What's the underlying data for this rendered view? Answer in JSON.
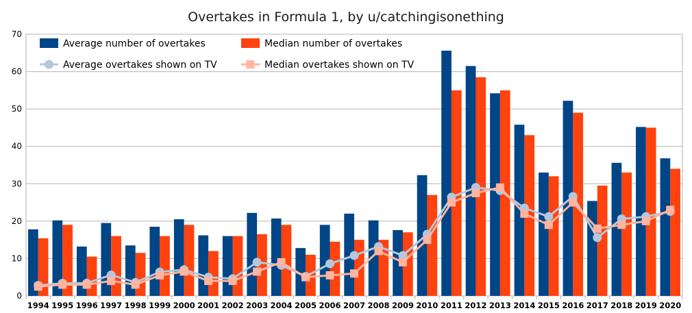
{
  "chart_data": {
    "type": "bar",
    "title": "Overtakes in Formula 1, by u/catchingisonething",
    "xlabel": "",
    "ylabel": "",
    "ylim": [
      0,
      70
    ],
    "yticks": [
      0,
      10,
      20,
      30,
      40,
      50,
      60,
      70
    ],
    "grid": true,
    "legend_position": "top-left",
    "categories": [
      "1994",
      "1995",
      "1996",
      "1997",
      "1998",
      "1999",
      "2000",
      "2001",
      "2002",
      "2003",
      "2004",
      "2005",
      "2006",
      "2007",
      "2008",
      "2009",
      "2010",
      "2011",
      "2012",
      "2013",
      "2014",
      "2015",
      "2016",
      "2017",
      "2018",
      "2019",
      "2020"
    ],
    "series": [
      {
        "name": "Average number of overtakes",
        "kind": "bar",
        "color": "#004586",
        "values": [
          17.8,
          20.2,
          13.2,
          19.5,
          13.5,
          18.5,
          20.5,
          16.2,
          16,
          22.2,
          20.7,
          12.8,
          19,
          22,
          20.2,
          17.6,
          32.3,
          65.6,
          61.5,
          54.2,
          45.8,
          33,
          52.2,
          25.4,
          35.6,
          45.2,
          36.8
        ]
      },
      {
        "name": "Median number of overtakes",
        "kind": "bar",
        "color": "#ff420e",
        "values": [
          15.4,
          19,
          10.5,
          16,
          11.5,
          16,
          19,
          12,
          16,
          16.5,
          19,
          11,
          14.5,
          15,
          15,
          17,
          27,
          55,
          58.5,
          55,
          43,
          32,
          49,
          29.5,
          33,
          45,
          34
        ]
      },
      {
        "name": "Average overtakes shown on TV",
        "kind": "line",
        "color": "#b4c7dc",
        "marker": "circle",
        "values": [
          2.8,
          3.4,
          3.4,
          5.6,
          3.6,
          6.4,
          7,
          5,
          4.6,
          9,
          8.2,
          5.2,
          8.6,
          10.8,
          13.2,
          10.8,
          16.5,
          26.4,
          29,
          28.2,
          23.5,
          21.2,
          26.6,
          15.6,
          20.6,
          21.2,
          22.6
        ]
      },
      {
        "name": "Median overtakes shown on TV",
        "kind": "line",
        "color": "#ffb5a0",
        "marker": "square",
        "values": [
          2.5,
          3,
          3,
          4,
          3,
          5.5,
          6.5,
          4,
          4,
          6.5,
          9,
          5,
          5.5,
          6,
          12,
          9,
          15,
          25,
          27.5,
          29,
          22,
          19,
          25,
          18,
          19,
          20,
          23
        ]
      }
    ]
  }
}
